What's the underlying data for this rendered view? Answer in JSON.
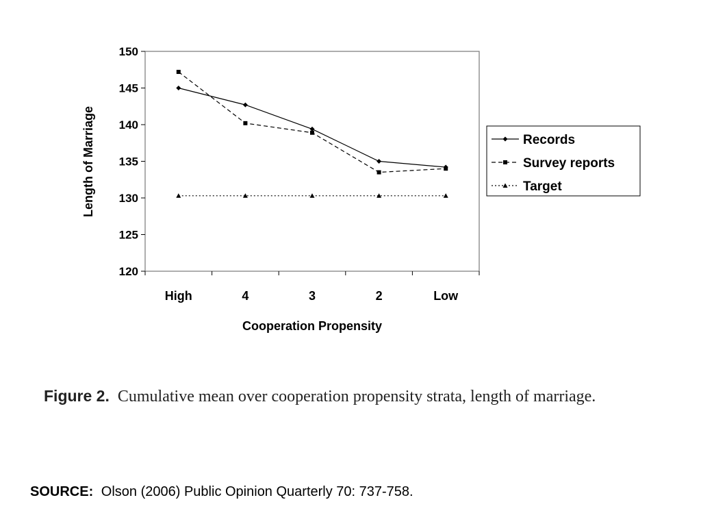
{
  "chart_data": {
    "type": "line",
    "categories": [
      "High",
      "4",
      "3",
      "2",
      "Low"
    ],
    "xlabel": "Cooperation Propensity",
    "ylabel": "Length of Marriage",
    "ylim": [
      120,
      150
    ],
    "yticks": [
      120,
      125,
      130,
      135,
      140,
      145,
      150
    ],
    "grid": false,
    "legend_position": "right",
    "series": [
      {
        "name": "Records",
        "marker": "diamond",
        "dash": "solid",
        "color": "#000000",
        "values": [
          145.0,
          142.7,
          139.4,
          135.0,
          134.2
        ]
      },
      {
        "name": "Survey reports",
        "marker": "square",
        "dash": "dashed",
        "color": "#000000",
        "values": [
          147.2,
          140.2,
          138.9,
          133.5,
          134.0
        ]
      },
      {
        "name": "Target",
        "marker": "triangle",
        "dash": "dotted",
        "color": "#000000",
        "values": [
          130.3,
          130.3,
          130.3,
          130.3,
          130.3
        ]
      }
    ]
  },
  "caption": {
    "label": "Figure 2.",
    "text": "Cumulative mean over cooperation propensity strata, length of marriage."
  },
  "source": {
    "label": "SOURCE:",
    "text": "Olson (2006) Public Opinion Quarterly 70: 737-758."
  }
}
